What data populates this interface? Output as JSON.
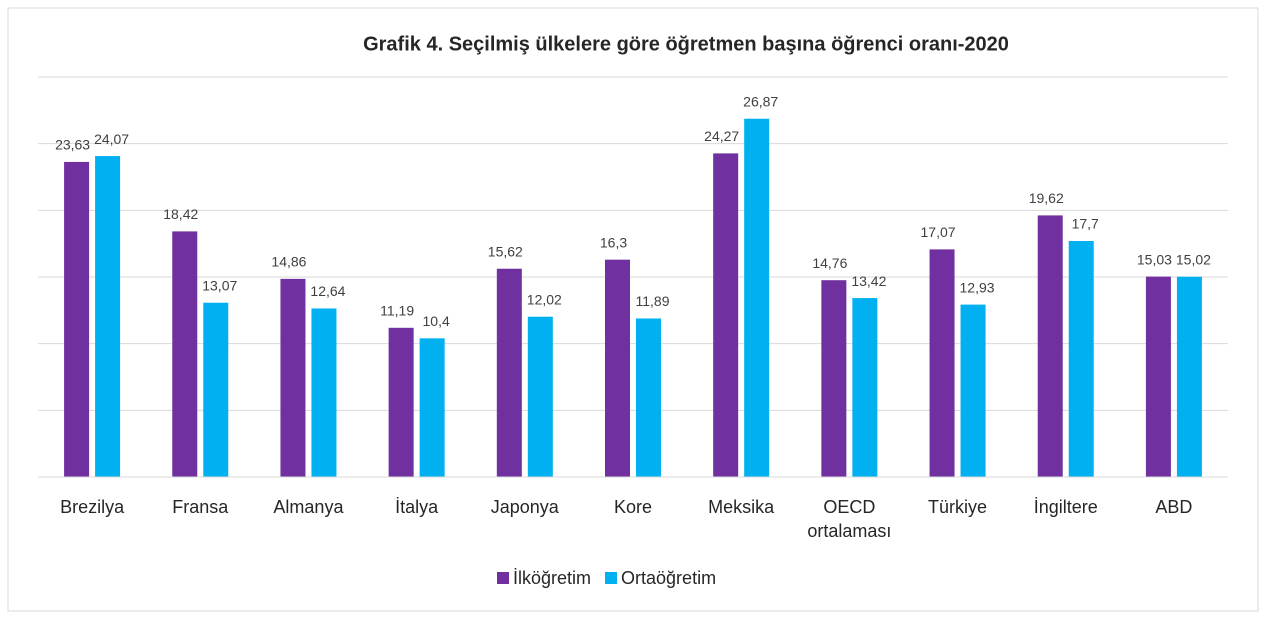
{
  "chart_data": {
    "type": "bar",
    "title": "Grafik 4. Seçilmiş ülkelere göre öğretmen başına öğrenci oranı-2020",
    "categories": [
      "Brezilya",
      "Fransa",
      "Almanya",
      "İtalya",
      "Japonya",
      "Kore",
      "Meksika",
      "OECD ortalaması",
      "Türkiye",
      "İngiltere",
      "ABD"
    ],
    "series": [
      {
        "name": "İlköğretim",
        "color": "#7030a0",
        "values": [
          23.63,
          18.42,
          14.86,
          11.19,
          15.62,
          16.3,
          24.27,
          14.76,
          17.07,
          19.62,
          15.03
        ],
        "value_labels": [
          "23,63",
          "18,42",
          "14,86",
          "11,19",
          "15,62",
          "16,3",
          "24,27",
          "14,76",
          "17,07",
          "19,62",
          "15,03"
        ]
      },
      {
        "name": "Ortaöğretim",
        "color": "#00b0f0",
        "values": [
          24.07,
          13.07,
          12.64,
          10.4,
          12.02,
          11.89,
          26.87,
          13.42,
          12.93,
          17.7,
          15.02
        ],
        "value_labels": [
          "24,07",
          "13,07",
          "12,64",
          "10,4",
          "12,02",
          "11,89",
          "26,87",
          "13,42",
          "12,93",
          "17,7",
          "15,02"
        ]
      }
    ],
    "ylim": [
      0,
      30
    ],
    "yticks": [
      0,
      5,
      10,
      15,
      20,
      25,
      30
    ],
    "grid": true,
    "legend": "bottom"
  }
}
